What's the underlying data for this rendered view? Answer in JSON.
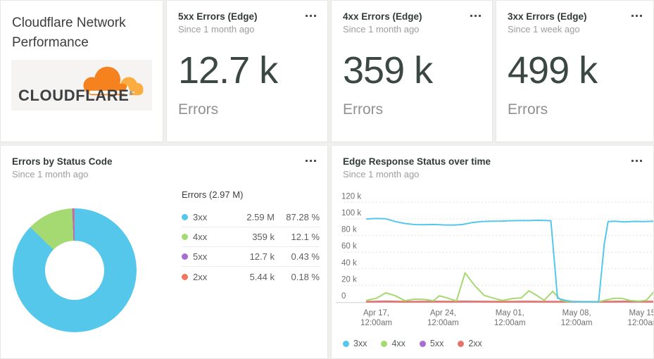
{
  "header_card": {
    "title_line1": "Cloudflare Network",
    "title_line2": "Performance",
    "logo_text": "CLOUDFLARE",
    "logo_mark": "®",
    "logo_orange": "#f6821f",
    "logo_light_orange": "#fbad41"
  },
  "stat_cards": [
    {
      "title": "5xx Errors (Edge)",
      "subtitle": "Since 1 month ago",
      "value": "12.7 k",
      "label": "Errors"
    },
    {
      "title": "4xx Errors (Edge)",
      "subtitle": "Since 1 month ago",
      "value": "359 k",
      "label": "Errors"
    },
    {
      "title": "3xx Errors (Edge)",
      "subtitle": "Since 1 week ago",
      "value": "499 k",
      "label": "Errors"
    }
  ],
  "donut_card": {
    "title": "Errors by Status Code",
    "subtitle": "Since 1 month ago",
    "legend_title": "Errors (2.97 M)",
    "rows": [
      {
        "name": "3xx",
        "value": "2.59 M",
        "pct": "87.28 %",
        "color": "#55c7eb"
      },
      {
        "name": "4xx",
        "value": "359 k",
        "pct": "12.1 %",
        "color": "#a4da71"
      },
      {
        "name": "5xx",
        "value": "12.7 k",
        "pct": "0.43 %",
        "color": "#a46ed3"
      },
      {
        "name": "2xx",
        "value": "5.44 k",
        "pct": "0.18 %",
        "color": "#f0765d"
      }
    ]
  },
  "line_card": {
    "title": "Edge Response Status over time",
    "subtitle": "Since 1 month ago"
  },
  "chart_data": [
    {
      "type": "pie",
      "title": "Errors by Status Code",
      "subtitle": "Since 1 month ago",
      "total_label": "Errors (2.97 M)",
      "labels": [
        "3xx",
        "4xx",
        "5xx",
        "2xx"
      ],
      "values": [
        2590000,
        359000,
        12700,
        5440
      ],
      "percentages": [
        87.28,
        12.1,
        0.43,
        0.18
      ],
      "colors": [
        "#55c7eb",
        "#a4da71",
        "#a46ed3",
        "#f0765d"
      ],
      "donut": true,
      "legend_position": "right"
    },
    {
      "type": "line",
      "title": "Edge Response Status over time",
      "subtitle": "Since 1 month ago",
      "ylim": [
        0,
        120000
      ],
      "grid": "dotted-horizontal",
      "legend_position": "bottom",
      "y_ticks": [
        {
          "label": "120 k",
          "value": 120000
        },
        {
          "label": "100 k",
          "value": 100000
        },
        {
          "label": "80 k",
          "value": 80000
        },
        {
          "label": "60 k",
          "value": 60000
        },
        {
          "label": "40 k",
          "value": 40000
        },
        {
          "label": "20 k",
          "value": 20000
        },
        {
          "label": "0",
          "value": 0
        }
      ],
      "x_ticks": [
        {
          "day": 1,
          "l1": "Apr 17,",
          "l2": "12:00am"
        },
        {
          "day": 8,
          "l1": "Apr 24,",
          "l2": "12:00am"
        },
        {
          "day": 15,
          "l1": "May 01,",
          "l2": "12:00am"
        },
        {
          "day": 22,
          "l1": "May 08,",
          "l2": "12:00am"
        },
        {
          "day": 29,
          "l1": "May 15,",
          "l2": "12:00am"
        }
      ],
      "series": [
        {
          "name": "3xx",
          "color": "#55c7eb",
          "width": 2,
          "points": [
            [
              0,
              100000
            ],
            [
              1,
              100500
            ],
            [
              2,
              100200
            ],
            [
              3,
              96800
            ],
            [
              4,
              94500
            ],
            [
              5,
              93200
            ],
            [
              6,
              93000
            ],
            [
              7,
              93300
            ],
            [
              8,
              92800
            ],
            [
              9,
              92500
            ],
            [
              10,
              93200
            ],
            [
              11,
              95500
            ],
            [
              12,
              96800
            ],
            [
              13,
              97300
            ],
            [
              14,
              97400
            ],
            [
              15,
              97800
            ],
            [
              16,
              98000
            ],
            [
              17,
              98000
            ],
            [
              18,
              98300
            ],
            [
              19,
              98000
            ],
            [
              19.3,
              97800
            ],
            [
              20.0,
              4500
            ],
            [
              20.8,
              2000
            ],
            [
              21.5,
              700
            ],
            [
              22.5,
              400
            ],
            [
              23.5,
              300
            ],
            [
              24.3,
              200
            ],
            [
              24.9,
              70000
            ],
            [
              25.3,
              96800
            ],
            [
              26,
              97300
            ],
            [
              27,
              96400
            ],
            [
              28,
              97000
            ],
            [
              29,
              96800
            ],
            [
              30.2,
              97400
            ]
          ]
        },
        {
          "name": "4xx",
          "color": "#a4da71",
          "width": 2,
          "points": [
            [
              0,
              2000
            ],
            [
              1,
              4500
            ],
            [
              2,
              11000
            ],
            [
              3,
              7500
            ],
            [
              4,
              1500
            ],
            [
              5,
              3500
            ],
            [
              6,
              3200
            ],
            [
              7,
              1500
            ],
            [
              7.6,
              7500
            ],
            [
              8.4,
              5000
            ],
            [
              9.4,
              1200
            ],
            [
              10.3,
              35000
            ],
            [
              11.3,
              20000
            ],
            [
              12.3,
              8000
            ],
            [
              13.3,
              4500
            ],
            [
              14.2,
              1800
            ],
            [
              15.3,
              4200
            ],
            [
              16.2,
              4800
            ],
            [
              17,
              13500
            ],
            [
              17.8,
              8000
            ],
            [
              18.6,
              2000
            ],
            [
              19.5,
              12800
            ],
            [
              20.3,
              2500
            ],
            [
              21,
              500
            ],
            [
              22,
              200
            ],
            [
              23,
              200
            ],
            [
              24.3,
              300
            ],
            [
              25.2,
              2600
            ],
            [
              26,
              4600
            ],
            [
              26.8,
              4200
            ],
            [
              27.6,
              1800
            ],
            [
              28.5,
              900
            ],
            [
              29.3,
              2000
            ],
            [
              30.2,
              13500
            ]
          ]
        },
        {
          "name": "5xx",
          "color": "#a46ed3",
          "width": 2,
          "points": [
            [
              0,
              150
            ],
            [
              10,
              150
            ],
            [
              20,
              150
            ],
            [
              30.2,
              150
            ]
          ]
        },
        {
          "name": "2xx",
          "color": "#e4756b",
          "width": 2.5,
          "points": [
            [
              0,
              300
            ],
            [
              2,
              800
            ],
            [
              4,
              300
            ],
            [
              7,
              500
            ],
            [
              9,
              400
            ],
            [
              10,
              600
            ],
            [
              14,
              300
            ],
            [
              17,
              500
            ],
            [
              20,
              300
            ],
            [
              24,
              200
            ],
            [
              27,
              700
            ],
            [
              30.2,
              400
            ]
          ]
        }
      ]
    }
  ]
}
